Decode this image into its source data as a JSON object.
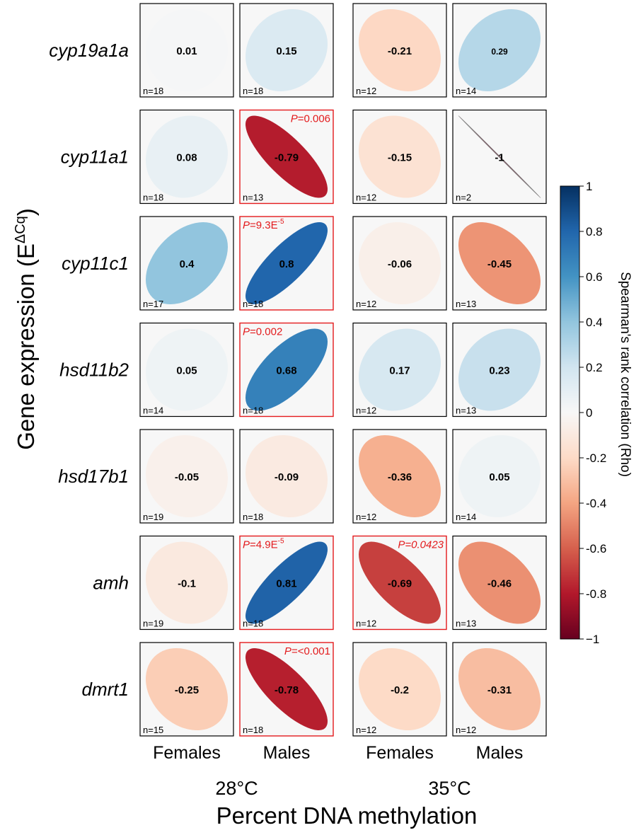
{
  "chart_data": {
    "type": "heatmap",
    "title": "",
    "xlabel": "Percent DNA methylation",
    "ylabel": "Gene expression (E",
    "ylabel_superscript": "ΔCq",
    "ylabel_close": ")",
    "column_groups": [
      "28°C",
      "35°C"
    ],
    "columns": [
      "Females",
      "Males",
      "Females",
      "Males"
    ],
    "rows": [
      "cyp19a1a",
      "cyp11a1",
      "cyp11c1",
      "hsd11b2",
      "hsd17b1",
      "amh",
      "dmrt1"
    ],
    "rho": [
      [
        "0.01",
        "0.15",
        "-0.21",
        "0.29"
      ],
      [
        "0.08",
        "-0.79",
        "-0.15",
        "-1"
      ],
      [
        "0.4",
        "0.8",
        "-0.06",
        "-0.45"
      ],
      [
        "0.05",
        "0.68",
        "0.17",
        "0.23"
      ],
      [
        "-0.05",
        "-0.09",
        "-0.36",
        "0.05"
      ],
      [
        "-0.1",
        "0.81",
        "-0.69",
        "-0.46"
      ],
      [
        "-0.25",
        "-0.78",
        "-0.2",
        "-0.31"
      ]
    ],
    "n": [
      [
        "n=18",
        "n=18",
        "n=12",
        "n=14"
      ],
      [
        "n=18",
        "n=13",
        "n=12",
        "n=2"
      ],
      [
        "n=17",
        "n=18",
        "n=12",
        "n=13"
      ],
      [
        "n=14",
        "n=18",
        "n=12",
        "n=13"
      ],
      [
        "n=19",
        "n=18",
        "n=12",
        "n=14"
      ],
      [
        "n=19",
        "n=18",
        "n=12",
        "n=13"
      ],
      [
        "n=15",
        "n=18",
        "n=12",
        "n=12"
      ]
    ],
    "significant": [
      {
        "row": 1,
        "col": 1,
        "p_prefix": "P",
        "p_text": "=0.006",
        "p_sup": "",
        "align": "right",
        "italic_value": false
      },
      {
        "row": 2,
        "col": 1,
        "p_prefix": "P",
        "p_text": "=9.3E",
        "p_sup": "-5",
        "align": "left",
        "italic_value": false
      },
      {
        "row": 3,
        "col": 1,
        "p_prefix": "P",
        "p_text": "=0.002",
        "p_sup": "",
        "align": "left",
        "italic_value": false
      },
      {
        "row": 5,
        "col": 1,
        "p_prefix": "P",
        "p_text": "=4.9E",
        "p_sup": "-5",
        "align": "left",
        "italic_value": false
      },
      {
        "row": 5,
        "col": 2,
        "p_prefix": "P",
        "p_text": "=0.0423",
        "p_sup": "",
        "align": "right",
        "italic_value": true
      },
      {
        "row": 6,
        "col": 1,
        "p_prefix": "P",
        "p_text": "=<0.001",
        "p_sup": "",
        "align": "right",
        "italic_value": false
      }
    ],
    "colorbar": {
      "label": "Spearman's rank correlation (Rho)",
      "range": [
        -1,
        1
      ],
      "ticks": [
        "1",
        "0.8",
        "0.6",
        "0.4",
        "0.2",
        "0",
        "-0.2",
        "-0.4",
        "-0.6",
        "-0.8",
        "−1"
      ],
      "colormap": "RdBu",
      "stops": [
        "#67001f",
        "#b2182b",
        "#d6604d",
        "#f4a582",
        "#fddbc7",
        "#f7f7f7",
        "#d1e5f0",
        "#92c5de",
        "#4393c3",
        "#2166ac",
        "#053061"
      ]
    },
    "colors": {
      "significant_border": "#e31a1c",
      "significant_text": "#e31a1c",
      "cell_border": "#000000",
      "cell_background": "#f7f7f7"
    }
  }
}
